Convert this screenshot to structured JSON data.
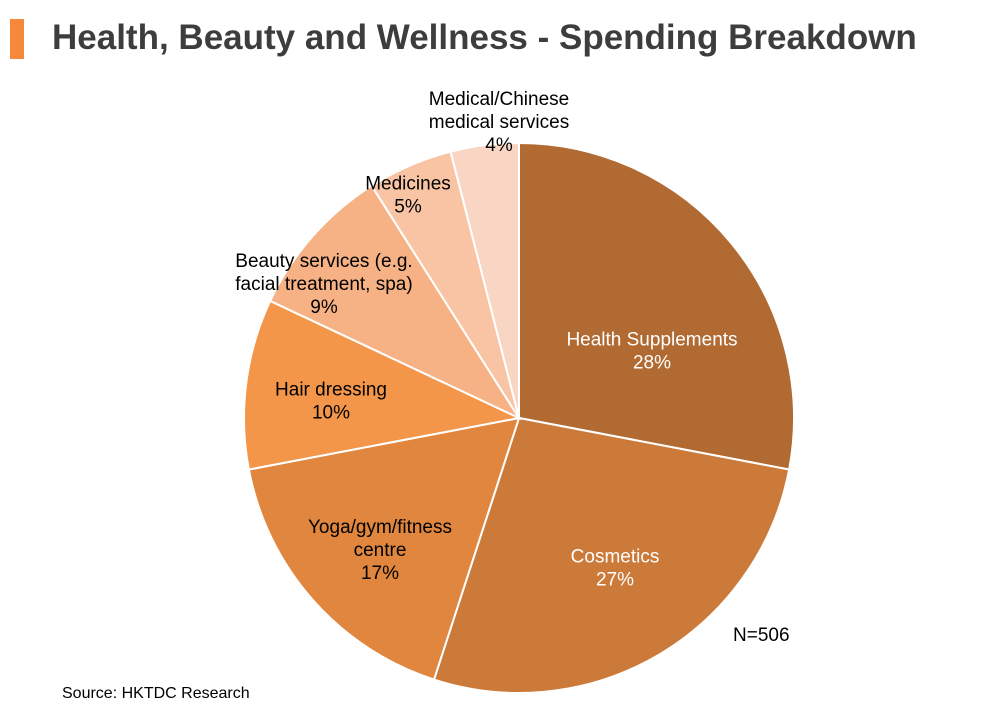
{
  "title": "Health, Beauty and Wellness - Spending Breakdown",
  "source": "Source: HKTDC Research",
  "sample_note": "N=506",
  "colors": {
    "accent": "#f5883a",
    "title": "#3d3d3d"
  },
  "chart_data": {
    "type": "pie",
    "title": "Health, Beauty and Wellness - Spending Breakdown",
    "slices": [
      {
        "label": "Health Supplements",
        "label_lines": [
          "Health Supplements"
        ],
        "value": 28,
        "value_label": "28%",
        "color": "#b06a32",
        "text_color": "#ffffff"
      },
      {
        "label": "Cosmetics",
        "label_lines": [
          "Cosmetics"
        ],
        "value": 27,
        "value_label": "27%",
        "color": "#cc7a3a",
        "text_color": "#ffffff"
      },
      {
        "label": "Yoga/gym/fitness centre",
        "label_lines": [
          "Yoga/gym/fitness",
          "centre"
        ],
        "value": 17,
        "value_label": "17%",
        "color": "#e0863f",
        "text_color": "#000000"
      },
      {
        "label": "Hair dressing",
        "label_lines": [
          "Hair dressing"
        ],
        "value": 10,
        "value_label": "10%",
        "color": "#f3964a",
        "text_color": "#000000"
      },
      {
        "label": "Beauty services (e.g. facial treatment, spa)",
        "label_lines": [
          "Beauty services (e.g.",
          "facial treatment,  spa)"
        ],
        "value": 9,
        "value_label": "9%",
        "color": "#f6b184",
        "text_color": "#000000"
      },
      {
        "label": "Medicines",
        "label_lines": [
          "Medicines"
        ],
        "value": 5,
        "value_label": "5%",
        "color": "#f8c4a4",
        "text_color": "#000000"
      },
      {
        "label": "Medical/Chinese medical services",
        "label_lines": [
          "Medical/Chinese",
          "medical services"
        ],
        "value": 4,
        "value_label": "4%",
        "color": "#f9d6c4",
        "text_color": "#000000"
      }
    ]
  }
}
